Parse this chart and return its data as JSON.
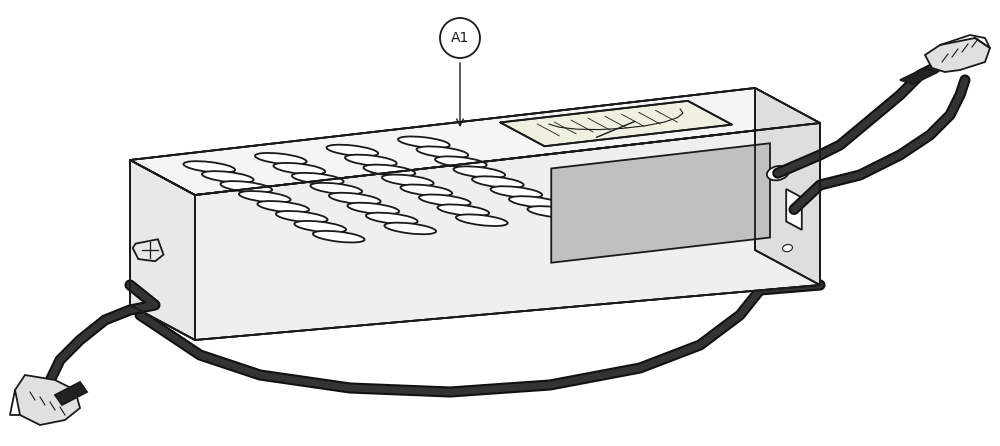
{
  "background_color": "#ffffff",
  "line_color": "#1a1a1a",
  "label_text": "A1",
  "fig_width": 10.0,
  "fig_height": 4.46,
  "lw_main": 1.3,
  "lw_cable": 7,
  "box_color_top": "#f5f5f5",
  "box_color_front": "#efefef",
  "box_color_right": "#e2e2e2",
  "box_color_left_end": "#e8e8e8",
  "box_color_right_end": "#dedede",
  "vent_color": "#ffffff",
  "meter_bg": "#f0f0e0",
  "gray_sticker": "#c0c0c0",
  "cable_dark": "#111111",
  "cable_mid": "#333333",
  "clamp_fill": "#e0e0e0",
  "insulator_fill": "#222222"
}
